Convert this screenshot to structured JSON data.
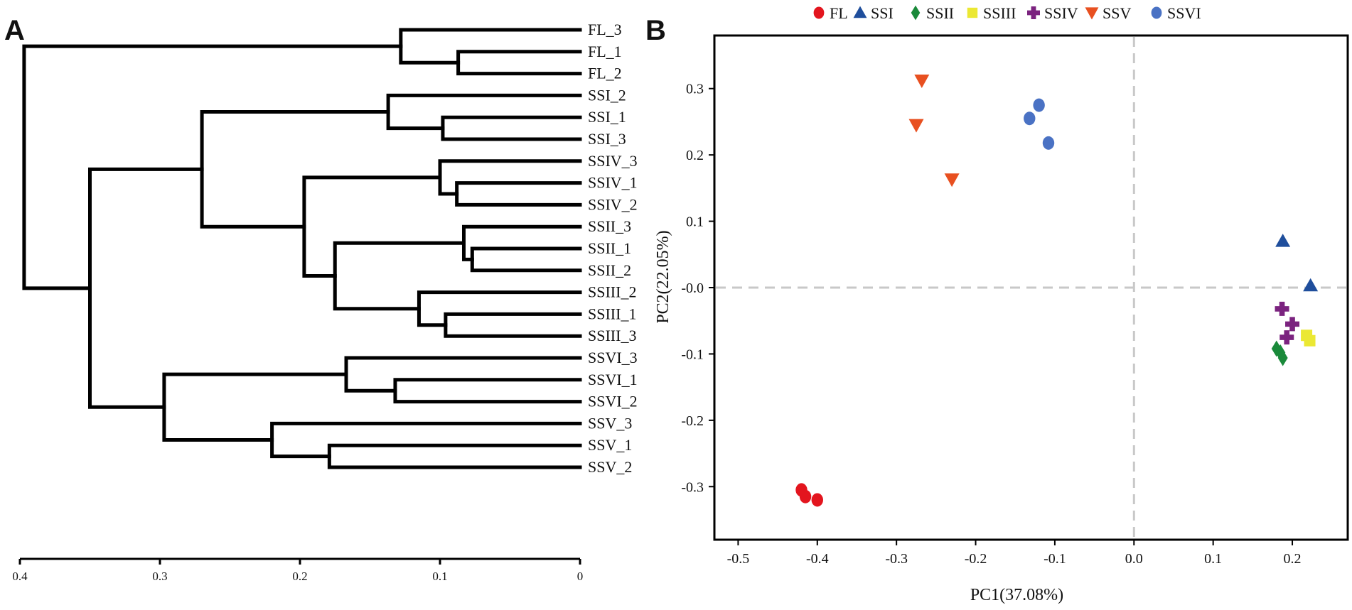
{
  "panels": {
    "dendrogram": {
      "letter": "A"
    },
    "pca": {
      "letter": "B"
    }
  },
  "chart_data": [
    {
      "type": "dendrogram",
      "leaves": [
        "FL_3",
        "FL_1",
        "FL_2",
        "SSI_2",
        "SSI_1",
        "SSI_3",
        "SSIV_3",
        "SSIV_1",
        "SSIV_2",
        "SSII_3",
        "SSII_1",
        "SSII_2",
        "SSIII_2",
        "SSIII_1",
        "SSIII_3",
        "SSVI_3",
        "SSVI_1",
        "SSVI_2",
        "SSV_3",
        "SSV_1",
        "SSV_2"
      ],
      "merges": [
        {
          "a": 1,
          "b": 2,
          "height": 0.087
        },
        {
          "a": 0,
          "b": 21,
          "height": 0.128
        },
        {
          "a": 4,
          "b": 5,
          "height": 0.098
        },
        {
          "a": 3,
          "b": 23,
          "height": 0.137
        },
        {
          "a": 7,
          "b": 8,
          "height": 0.088
        },
        {
          "a": 6,
          "b": 25,
          "height": 0.1
        },
        {
          "a": 10,
          "b": 11,
          "height": 0.077
        },
        {
          "a": 9,
          "b": 27,
          "height": 0.083
        },
        {
          "a": 13,
          "b": 14,
          "height": 0.096
        },
        {
          "a": 12,
          "b": 29,
          "height": 0.115
        },
        {
          "a": 28,
          "b": 30,
          "height": 0.175
        },
        {
          "a": 26,
          "b": 31,
          "height": 0.197
        },
        {
          "a": 24,
          "b": 32,
          "height": 0.27
        },
        {
          "a": 16,
          "b": 17,
          "height": 0.132
        },
        {
          "a": 15,
          "b": 34,
          "height": 0.167
        },
        {
          "a": 19,
          "b": 20,
          "height": 0.179
        },
        {
          "a": 18,
          "b": 36,
          "height": 0.22
        },
        {
          "a": 35,
          "b": 37,
          "height": 0.297
        },
        {
          "a": 33,
          "b": 38,
          "height": 0.35
        },
        {
          "a": 22,
          "b": 39,
          "height": 0.397
        }
      ],
      "axis": {
        "ticks": [
          0.4,
          0.3,
          0.2,
          0.1,
          0
        ],
        "tick_labels": [
          "0.4",
          "0.3",
          "0.2",
          "0.1",
          "0"
        ],
        "range": [
          0.4,
          0
        ]
      }
    },
    {
      "type": "scatter",
      "xlabel": "PC1(37.08%)",
      "ylabel": "PC2(22.05%)",
      "xlim": [
        -0.53,
        0.27
      ],
      "ylim": [
        -0.38,
        0.38
      ],
      "xticks": [
        -0.5,
        -0.4,
        -0.3,
        -0.2,
        -0.1,
        0.0,
        0.1,
        0.2
      ],
      "xtick_labels": [
        "-0.5",
        "-0.4",
        "-0.3",
        "-0.2",
        "-0.1",
        "0.0",
        "0.1",
        "0.2"
      ],
      "yticks": [
        0.3,
        0.2,
        0.1,
        0.0,
        -0.1,
        -0.2,
        -0.3
      ],
      "ytick_labels": [
        "0.3",
        "0.2",
        "0.1",
        "-0.0",
        "-0.1",
        "-0.2",
        "-0.3"
      ],
      "reference_lines": {
        "x": 0,
        "y": 0
      },
      "legend_position": "top",
      "series": [
        {
          "name": "FL",
          "marker": "circle",
          "color": "#e3151e",
          "points": [
            {
              "x": -0.42,
              "y": -0.305
            },
            {
              "x": -0.415,
              "y": -0.315
            },
            {
              "x": -0.4,
              "y": -0.32
            }
          ]
        },
        {
          "name": "SSI",
          "marker": "triangle-up",
          "color": "#1f4e9c",
          "points": [
            {
              "x": 0.188,
              "y": 0.07
            },
            {
              "x": 0.223,
              "y": 0.003
            }
          ]
        },
        {
          "name": "SSII",
          "marker": "diamond",
          "color": "#1a8a3a",
          "points": [
            {
              "x": 0.18,
              "y": -0.092
            },
            {
              "x": 0.185,
              "y": -0.098
            },
            {
              "x": 0.188,
              "y": -0.106
            }
          ]
        },
        {
          "name": "SSIII",
          "marker": "square",
          "color": "#ebe833",
          "points": [
            {
              "x": 0.218,
              "y": -0.072
            },
            {
              "x": 0.222,
              "y": -0.08
            }
          ]
        },
        {
          "name": "SSIV",
          "marker": "plus",
          "color": "#7b237f",
          "points": [
            {
              "x": 0.187,
              "y": -0.032
            },
            {
              "x": 0.2,
              "y": -0.055
            },
            {
              "x": 0.193,
              "y": -0.075
            }
          ]
        },
        {
          "name": "SSV",
          "marker": "triangle-down",
          "color": "#e85020",
          "points": [
            {
              "x": -0.268,
              "y": 0.312
            },
            {
              "x": -0.275,
              "y": 0.245
            },
            {
              "x": -0.23,
              "y": 0.163
            }
          ]
        },
        {
          "name": "SSVI",
          "marker": "circle",
          "color": "#4a72c4",
          "points": [
            {
              "x": -0.12,
              "y": 0.275
            },
            {
              "x": -0.132,
              "y": 0.255
            },
            {
              "x": -0.108,
              "y": 0.218
            }
          ]
        }
      ]
    }
  ]
}
